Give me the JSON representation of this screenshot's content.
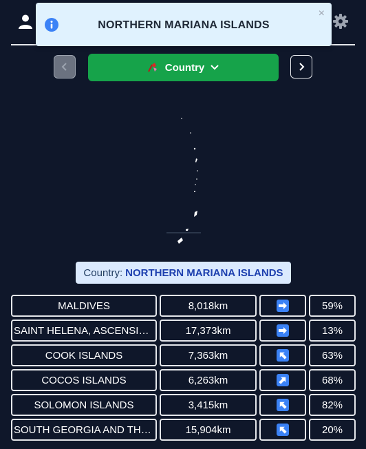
{
  "toast": {
    "message": "NORTHERN MARIANA ISLANDS",
    "close_symbol": "×"
  },
  "controls": {
    "country_button_label": "Country",
    "country_button_icon": "flag-emoji"
  },
  "answer": {
    "label": "Country:",
    "value": "NORTHERN MARIANA ISLANDS"
  },
  "guesses": [
    {
      "name": "MALDIVES",
      "distance": "8,018km",
      "direction": "east-arrow",
      "proximity": "59%"
    },
    {
      "name": "SAINT HELENA, ASCENSION AND TRISTAN DA CUNHA",
      "distance": "17,373km",
      "direction": "east-arrow",
      "proximity": "13%"
    },
    {
      "name": "COOK ISLANDS",
      "distance": "7,363km",
      "direction": "north-west-arrow",
      "proximity": "63%"
    },
    {
      "name": "COCOS ISLANDS",
      "distance": "6,263km",
      "direction": "north-east-arrow",
      "proximity": "68%"
    },
    {
      "name": "SOLOMON ISLANDS",
      "distance": "3,415km",
      "direction": "north-west-arrow",
      "proximity": "82%"
    },
    {
      "name": "SOUTH GEORGIA AND THE SOUTH SANDWICH ISLANDS",
      "distance": "15,904km",
      "direction": "north-west-arrow",
      "proximity": "20%"
    }
  ],
  "colors": {
    "background": "#0f172a",
    "country_button": "#16a34a",
    "toast_bg": "#e0f2fe",
    "label_bg": "#dbeafe",
    "arrow_bg": "#3b82f6"
  }
}
